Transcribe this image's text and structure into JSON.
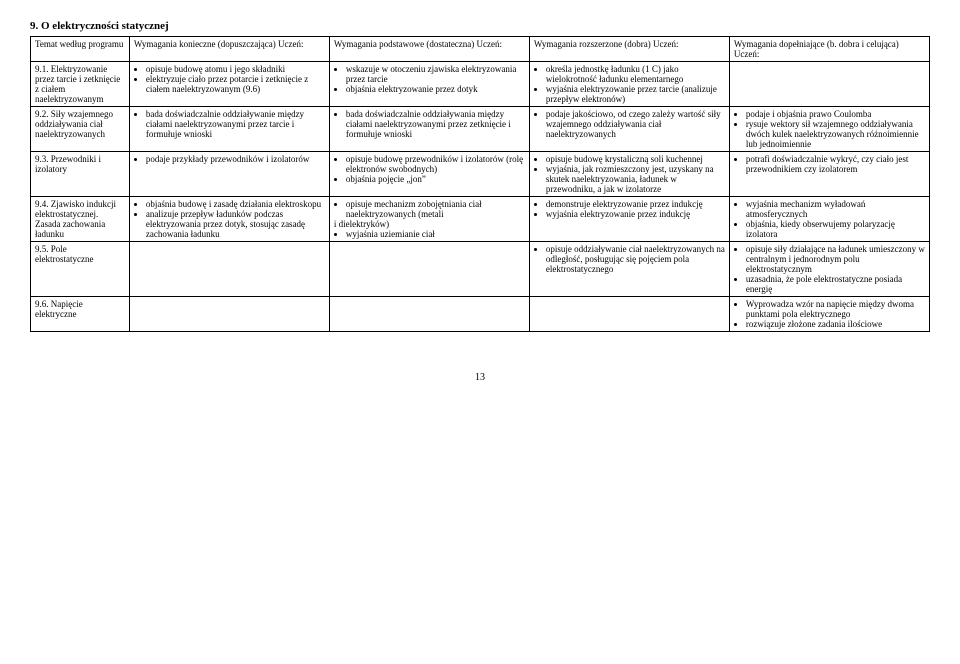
{
  "chapter_title": "9. O elektryczności statycznej",
  "headers": {
    "col1": "Temat według programu",
    "col2": "Wymagania konieczne (dopuszczająca) Uczeń:",
    "col3": "Wymagania podstawowe (dostateczna) Uczeń:",
    "col4": "Wymagania rozszerzone (dobra) Uczeń:",
    "col5": "Wymagania dopełniające (b. dobra i celująca) Uczeń:"
  },
  "rows": [
    {
      "topic": "9.1. Elektryzowanie przez tarcie i zetknięcie z ciałem naelektryzowanym",
      "c2": [
        "opisuje budowę atomu i jego składniki",
        "elektryzuje ciało przez potarcie i zetknięcie z ciałem naelektryzowanym (9.6)"
      ],
      "c3": [
        "wskazuje w otoczeniu zjawiska elektryzowania przez tarcie",
        "objaśnia elektryzowanie przez dotyk"
      ],
      "c4": [
        "określa jednostkę ładunku (1 C) jako wielokrotność ładunku elementarnego",
        "wyjaśnia elektryzowanie przez tarcie (analizuje przepływ elektronów)"
      ],
      "c5": []
    },
    {
      "topic": "9.2. Siły wzajemnego oddziaływania ciał naelektryzowanych",
      "c2": [
        "bada doświadczalnie oddziaływanie między ciałami naelektryzowanymi przez tarcie i formułuje wnioski"
      ],
      "c3": [
        "bada doświadczalnie oddziaływania między ciałami naelektryzowanymi przez zetknięcie i formułuje wnioski"
      ],
      "c4": [
        "podaje jakościowo, od czego zależy wartość siły wzajemnego oddziaływania ciał naelektryzowanych"
      ],
      "c5": [
        "podaje i objaśnia prawo Coulomba",
        "rysuje wektory sił wzajemnego oddziaływania dwóch kulek naelektryzowanych różnoimiennie lub jednoimiennie"
      ]
    },
    {
      "topic": "9.3. Przewodniki i izolatory",
      "c2": [
        "podaje przykłady przewodników i izolatorów"
      ],
      "c3": [
        "opisuje budowę przewodników i izolatorów (rolę elektronów swobodnych)",
        "objaśnia pojęcie „jon”"
      ],
      "c4": [
        "opisuje budowę krystaliczną soli kuchennej",
        "wyjaśnia, jak rozmieszczony jest, uzyskany na skutek naelektryzowania, ładunek w przewodniku, a jak w izolatorze"
      ],
      "c5": [
        "potrafi doświadczalnie wykryć, czy ciało jest przewodnikiem czy izolatorem"
      ]
    },
    {
      "topic": "9.4. Zjawisko indukcji elektrostatycznej. Zasada zachowania ładunku",
      "c2": [
        "objaśnia budowę i zasadę działania elektroskopu",
        "analizuje przepływ ładunków podczas elektryzowania przez dotyk, stosując zasadę zachowania ładunku"
      ],
      "c3_raw": "<ul><li>opisuje mechanizm zobojętniania ciał naelektryzowanych (metali</li></ul>i dielektryków)<ul><li>wyjaśnia uziemianie ciał</li></ul>",
      "c4": [
        "demonstruje elektryzowanie przez indukcję",
        "wyjaśnia elektryzowanie przez indukcję"
      ],
      "c5": [
        "wyjaśnia mechanizm wyładowań atmosferycznych",
        "objaśnia, kiedy obserwujemy polaryzację izolatora"
      ]
    },
    {
      "topic": "9.5. Pole elektrostatyczne",
      "c2": [],
      "c3": [],
      "c4": [
        "opisuje oddziaływanie ciał naelektryzowanych na odległość, posługując się pojęciem pola elektrostatycznego"
      ],
      "c5": [
        "opisuje siły działające na ładunek umieszczony w centralnym i jednorodnym polu elektrostatycznym",
        "uzasadnia, że pole elektrostatyczne posiada energię"
      ]
    },
    {
      "topic": "9.6. Napięcie elektryczne",
      "c2": [],
      "c3": [],
      "c4": [],
      "c5": [
        "Wyprowadza wzór na napięcie między dwoma punktami pola elektrycznego",
        "rozwiązuje złożone zadania ilościowe"
      ]
    }
  ],
  "page_number": "13"
}
